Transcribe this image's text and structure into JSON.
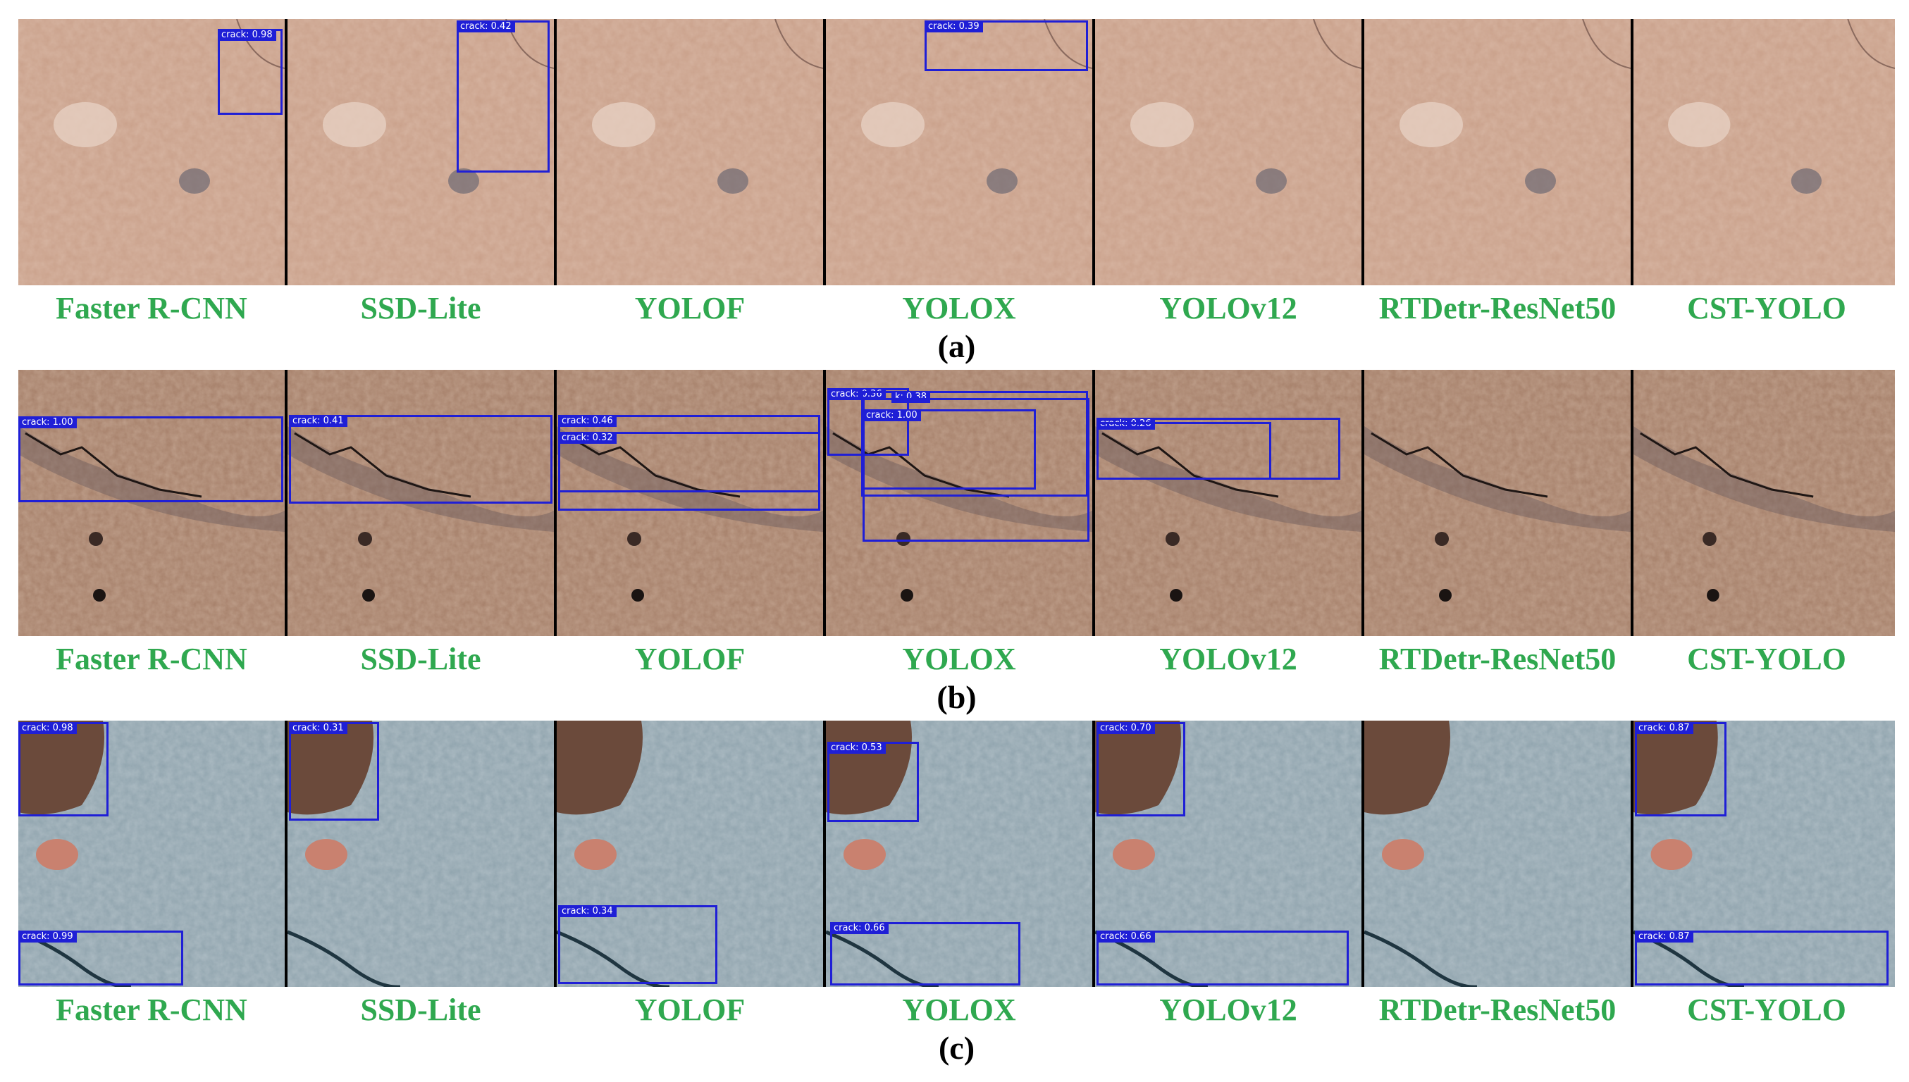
{
  "rows": [
    {
      "label": "(a)",
      "models": [
        {
          "name": "Faster R-CNN",
          "detections": [
            {
              "text": "crack: 0.98"
            }
          ]
        },
        {
          "name": "SSD-Lite",
          "detections": [
            {
              "text": "crack: 0.42"
            }
          ]
        },
        {
          "name": "YOLOF",
          "detections": []
        },
        {
          "name": "YOLOX",
          "detections": [
            {
              "text": "crack: 0.39"
            }
          ]
        },
        {
          "name": "YOLOv12",
          "detections": []
        },
        {
          "name": "RTDetr-ResNet50",
          "detections": []
        },
        {
          "name": "CST-YOLO",
          "detections": []
        }
      ]
    },
    {
      "label": "(b)",
      "models": [
        {
          "name": "Faster R-CNN",
          "detections": [
            {
              "text": "crack: 1.00"
            }
          ]
        },
        {
          "name": "SSD-Lite",
          "detections": [
            {
              "text": "crack: 0.41"
            }
          ]
        },
        {
          "name": "YOLOF",
          "detections": [
            {
              "text": "crack: 0.46"
            },
            {
              "text": "crack: 0.32"
            }
          ]
        },
        {
          "name": "YOLOX",
          "detections": [
            {
              "text": "crack: 0.36"
            },
            {
              "text": "k: 0.38"
            },
            {
              "text": "crack: 1.00"
            }
          ]
        },
        {
          "name": "YOLOv12",
          "detections": [
            {
              "text": "crack: 0.26"
            }
          ]
        },
        {
          "name": "RTDetr-ResNet50",
          "detections": []
        },
        {
          "name": "CST-YOLO",
          "detections": []
        }
      ]
    },
    {
      "label": "(c)",
      "models": [
        {
          "name": "Faster R-CNN",
          "detections": [
            {
              "text": "crack: 0.98"
            },
            {
              "text": "crack: 0.99"
            }
          ]
        },
        {
          "name": "SSD-Lite",
          "detections": [
            {
              "text": "crack: 0.31"
            }
          ]
        },
        {
          "name": "YOLOF",
          "detections": [
            {
              "text": "crack: 0.34"
            }
          ]
        },
        {
          "name": "YOLOX",
          "detections": [
            {
              "text": "crack: 0.53"
            },
            {
              "text": "crack: 0.66"
            }
          ]
        },
        {
          "name": "YOLOv12",
          "detections": [
            {
              "text": "crack: 0.70"
            },
            {
              "text": "crack: 0.66"
            }
          ]
        },
        {
          "name": "RTDetr-ResNet50",
          "detections": []
        },
        {
          "name": "CST-YOLO",
          "detections": [
            {
              "text": "crack: 0.87"
            },
            {
              "text": "crack: 0.87"
            }
          ]
        }
      ]
    }
  ],
  "colors": {
    "model_label": "#2fa84f",
    "box": "#1f1fd6"
  }
}
